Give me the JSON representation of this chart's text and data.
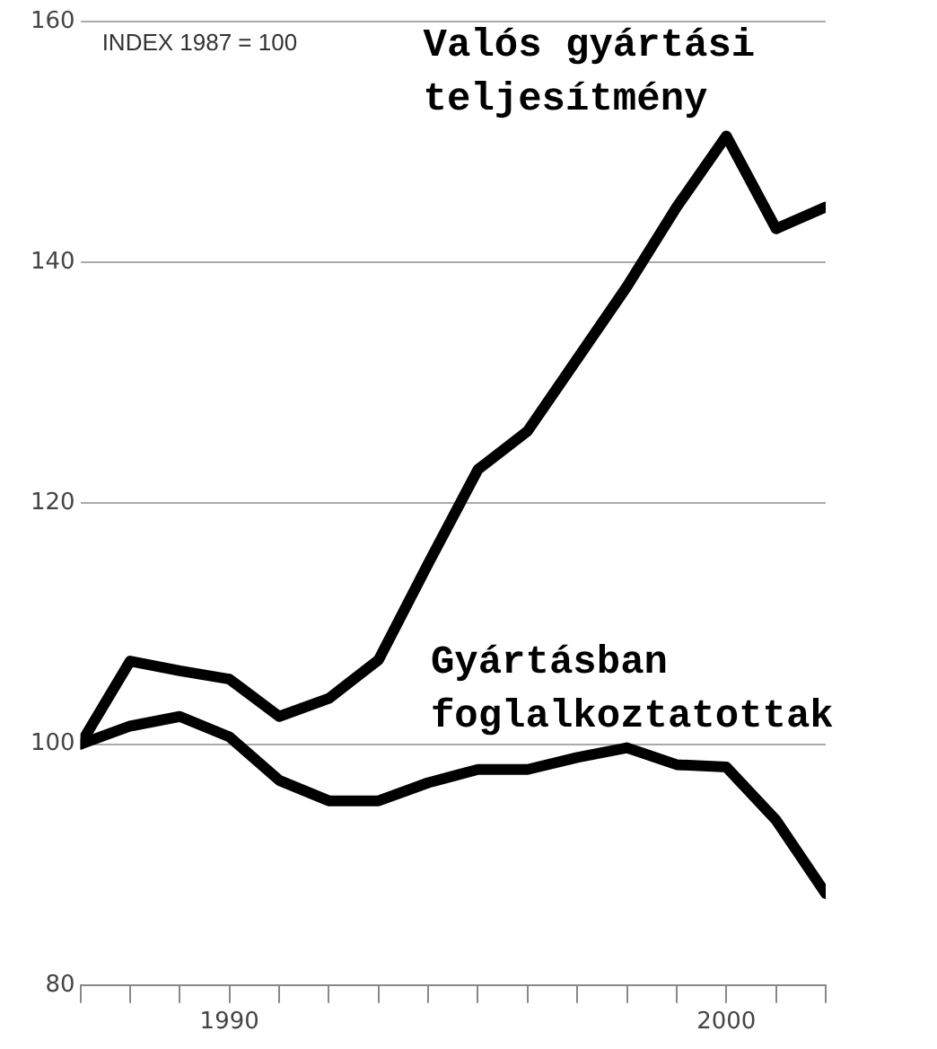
{
  "chart_data": {
    "type": "line",
    "x": [
      1987,
      1988,
      1989,
      1990,
      1991,
      1992,
      1993,
      1994,
      1995,
      1996,
      1997,
      1998,
      1999,
      2000,
      2001,
      2002
    ],
    "series": [
      {
        "name": "Valós gyártási teljesítmény",
        "color": "#000000",
        "values": [
          100,
          106.9,
          106.1,
          105.4,
          102.3,
          103.8,
          107,
          115,
          122.8,
          126,
          132,
          138,
          144.6,
          150.5,
          142.8,
          144.6
        ]
      },
      {
        "name": "Gyártásban foglalkoztatottak",
        "color": "#000000",
        "values": [
          100,
          101.5,
          102.3,
          100.6,
          97,
          95.3,
          95.3,
          96.8,
          97.9,
          97.9,
          98.9,
          99.7,
          98.3,
          98.1,
          93.7,
          87.6
        ]
      }
    ],
    "xlim": [
      1987,
      2002
    ],
    "xticks": [
      {
        "value": 1987,
        "label": null
      },
      {
        "value": 1988,
        "label": null
      },
      {
        "value": 1989,
        "label": null
      },
      1990,
      {
        "value": 1991,
        "label": null
      },
      {
        "value": 1992,
        "label": null
      },
      {
        "value": 1993,
        "label": null
      },
      {
        "value": 1994,
        "label": null
      },
      {
        "value": 1995,
        "label": null
      },
      {
        "value": 1996,
        "label": null
      },
      {
        "value": 1997,
        "label": null
      },
      {
        "value": 1998,
        "label": null
      },
      {
        "value": 1999,
        "label": null
      },
      2000,
      {
        "value": 2001,
        "label": null
      },
      {
        "value": 2002,
        "label": null
      }
    ],
    "ylim": [
      80,
      160
    ],
    "yticks": [
      80,
      100,
      120,
      140,
      160
    ],
    "grid": "y",
    "legend": false,
    "marker": "none",
    "line_style": "solid",
    "annotations": [
      "INDEX 1987 = 100"
    ]
  }
}
